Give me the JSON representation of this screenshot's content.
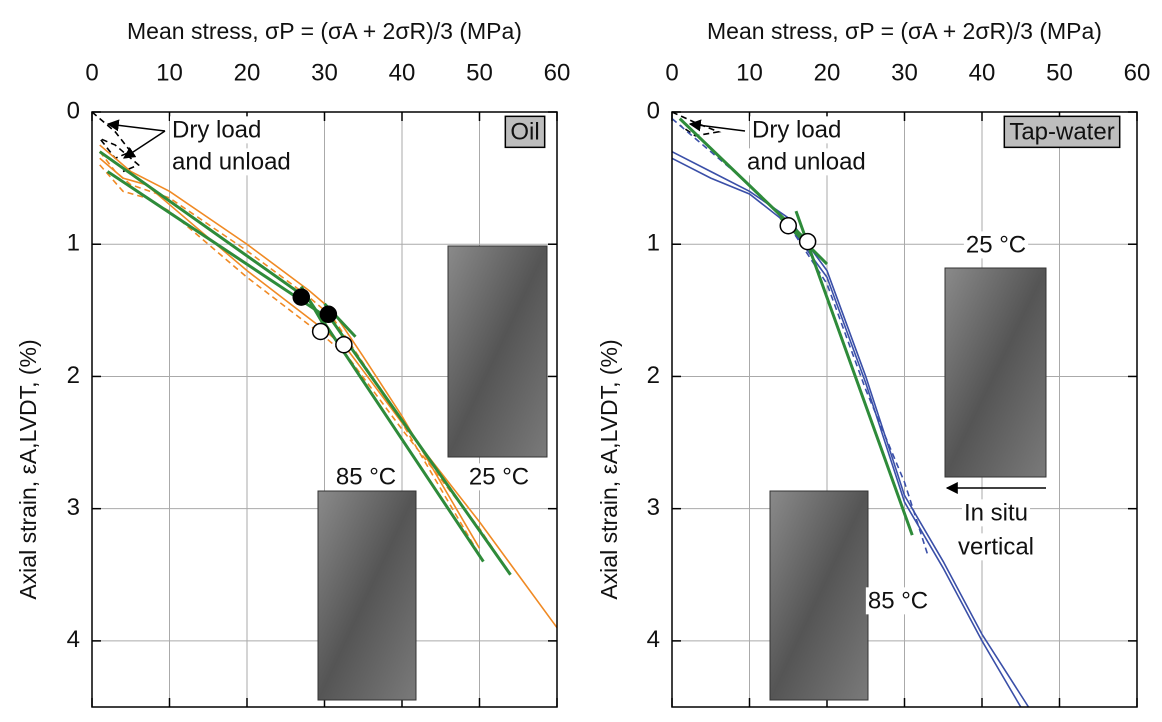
{
  "chart_data": [
    {
      "type": "line",
      "xlabel": "Mean stress,  σP = (σA + 2σR)/3  (MPa)",
      "ylabel": "Axial strain,  εA,LVDT, (%)",
      "xlim": [
        0,
        60
      ],
      "xticks": [
        0,
        10,
        20,
        30,
        40,
        50,
        60
      ],
      "ylim": [
        0,
        4.5
      ],
      "yticks": [
        0,
        1,
        2,
        3,
        4
      ],
      "y_inverted": true,
      "grid": true,
      "annotations": [
        "Dry load",
        "and unload",
        "Oil",
        "85 °C",
        "25 °C"
      ],
      "series": [
        {
          "color": "#000000",
          "dash": true,
          "x": [
            0,
            3,
            5,
            3,
            1,
            3,
            6,
            4
          ],
          "values": [
            0,
            0.15,
            0.3,
            0.35,
            0.2,
            0.25,
            0.4,
            0.45
          ]
        },
        {
          "color": "#f08a24",
          "dash": false,
          "x": [
            1,
            3,
            5,
            10,
            20,
            28,
            31,
            35,
            40,
            45,
            50
          ],
          "values": [
            0.25,
            0.35,
            0.45,
            0.6,
            1.0,
            1.35,
            1.5,
            1.85,
            2.3,
            2.8,
            3.3
          ]
        },
        {
          "color": "#f08a24",
          "dash": true,
          "x": [
            1,
            3,
            5,
            10,
            20,
            28,
            31,
            35,
            40,
            45,
            50
          ],
          "values": [
            0.3,
            0.45,
            0.55,
            0.65,
            1.05,
            1.4,
            1.55,
            1.9,
            2.35,
            2.85,
            3.35
          ]
        },
        {
          "color": "#f08a24",
          "dash": false,
          "x": [
            1,
            4,
            7,
            10,
            20,
            30,
            33,
            40,
            50,
            55,
            60
          ],
          "values": [
            0.35,
            0.5,
            0.55,
            0.7,
            1.2,
            1.65,
            1.8,
            2.35,
            3.1,
            3.5,
            3.9
          ]
        },
        {
          "color": "#f08a24",
          "dash": true,
          "x": [
            1,
            4,
            7,
            10,
            20,
            30,
            33,
            40,
            50,
            54
          ],
          "values": [
            0.4,
            0.6,
            0.65,
            0.75,
            1.25,
            1.7,
            1.85,
            2.4,
            3.15,
            3.5
          ]
        },
        {
          "color": "#2e8b3a",
          "dash": false,
          "x": [
            1,
            28,
            50.5
          ],
          "values": [
            0.3,
            1.42,
            3.4
          ]
        },
        {
          "color": "#2e8b3a",
          "dash": false,
          "x": [
            2,
            31,
            54
          ],
          "values": [
            0.45,
            1.58,
            3.5
          ]
        },
        {
          "color": "#2e8b3a",
          "dash": false,
          "x": [
            27,
            30
          ],
          "values": [
            1.32,
            1.62
          ]
        },
        {
          "color": "#2e8b3a",
          "dash": false,
          "x": [
            30,
            34
          ],
          "values": [
            1.45,
            1.7
          ]
        },
        {
          "color": "#000000",
          "marker": "filled",
          "x": [
            27,
            30.5
          ],
          "values": [
            1.4,
            1.53
          ]
        },
        {
          "color": "#000000",
          "marker": "open",
          "x": [
            29.5,
            32.5
          ],
          "values": [
            1.66,
            1.76
          ]
        }
      ]
    },
    {
      "type": "line",
      "xlabel": "Mean stress,  σP = (σA + 2σR)/3  (MPa)",
      "ylabel": "Axial strain,  εA,LVDT, (%)",
      "xlim": [
        0,
        60
      ],
      "xticks": [
        0,
        10,
        20,
        30,
        40,
        50,
        60
      ],
      "ylim": [
        0,
        4.5
      ],
      "yticks": [
        0,
        1,
        2,
        3,
        4
      ],
      "y_inverted": true,
      "grid": true,
      "annotations": [
        "Dry load",
        "and unload",
        "Tap-water",
        "25 °C",
        "In situ",
        "vertical",
        "85 °C"
      ],
      "series": [
        {
          "color": "#000000",
          "dash": true,
          "x": [
            0,
            3,
            6,
            3,
            1
          ],
          "values": [
            0,
            0.08,
            0.15,
            0.18,
            0.1
          ]
        },
        {
          "color": "#3a4fa8",
          "dash": false,
          "x": [
            0,
            5,
            10,
            15,
            20,
            25,
            30,
            35,
            40,
            46
          ],
          "values": [
            0.3,
            0.45,
            0.6,
            0.8,
            1.2,
            2.0,
            2.9,
            3.4,
            3.95,
            4.5
          ]
        },
        {
          "color": "#3a4fa8",
          "dash": false,
          "x": [
            0,
            5,
            10,
            15,
            20,
            25,
            30,
            35,
            40,
            45
          ],
          "values": [
            0.35,
            0.5,
            0.62,
            0.85,
            1.25,
            2.05,
            2.95,
            3.45,
            4.0,
            4.5
          ]
        },
        {
          "color": "#3a4fa8",
          "dash": true,
          "x": [
            0,
            5,
            10,
            15,
            20,
            25,
            30,
            33
          ],
          "values": [
            0.05,
            0.3,
            0.55,
            0.85,
            1.3,
            2.1,
            2.8,
            3.35
          ]
        },
        {
          "color": "#2e8b3a",
          "dash": false,
          "x": [
            1,
            17
          ],
          "values": [
            0.05,
            0.95
          ]
        },
        {
          "color": "#2e8b3a",
          "dash": false,
          "x": [
            16,
            31
          ],
          "values": [
            0.75,
            3.2
          ]
        },
        {
          "color": "#2e8b3a",
          "dash": false,
          "x": [
            14,
            20
          ],
          "values": [
            0.8,
            1.15
          ]
        },
        {
          "color": "#000000",
          "marker": "open",
          "x": [
            15,
            17.5
          ],
          "values": [
            0.86,
            0.98
          ]
        }
      ]
    }
  ]
}
